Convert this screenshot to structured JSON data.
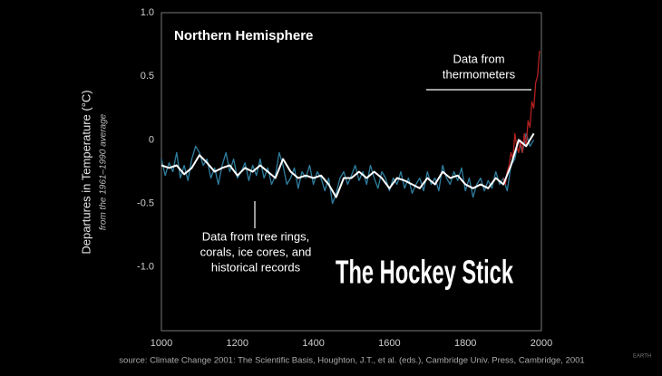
{
  "chart_data": {
    "type": "line",
    "title": "Northern Hemisphere",
    "y_label": "Departures in Temperature (°C)",
    "y_sublabel": "from the 1961–1990 average",
    "headline": "The Hockey Stick",
    "source": "source: Climate Change 2001: The Scientific Basis, Houghton, J.T., et al. (eds.), Cambridge Univ. Press, Cambridge, 2001",
    "logo": "EARTH",
    "annotations": [
      {
        "lines": [
          "Data from",
          "thermometers"
        ]
      },
      {
        "lines": [
          "Data from tree rings,",
          "corals, ice cores, and",
          "historical records"
        ]
      }
    ],
    "xlim": [
      1000,
      2000
    ],
    "xticks": [
      1000,
      1200,
      1400,
      1600,
      1800,
      2000
    ],
    "ylim": [
      -1.5,
      1.0
    ],
    "yticks": [
      {
        "value": 1,
        "label": "1.0"
      },
      0.5,
      0,
      -0.5,
      {
        "value": -1,
        "label": "-1.0"
      }
    ],
    "series": [
      {
        "color": "#2f7fa0",
        "x": [
          1000,
          1010,
          1020,
          1030,
          1040,
          1050,
          1060,
          1070,
          1080,
          1090,
          1100,
          1110,
          1120,
          1130,
          1140,
          1150,
          1160,
          1170,
          1180,
          1190,
          1200,
          1210,
          1220,
          1230,
          1240,
          1250,
          1260,
          1270,
          1280,
          1290,
          1300,
          1310,
          1320,
          1330,
          1340,
          1350,
          1360,
          1370,
          1380,
          1390,
          1400,
          1410,
          1420,
          1430,
          1440,
          1450,
          1460,
          1470,
          1480,
          1490,
          1500,
          1510,
          1520,
          1530,
          1540,
          1550,
          1560,
          1570,
          1580,
          1590,
          1600,
          1610,
          1620,
          1630,
          1640,
          1650,
          1660,
          1670,
          1680,
          1690,
          1700,
          1710,
          1720,
          1730,
          1740,
          1750,
          1760,
          1770,
          1780,
          1790,
          1800,
          1810,
          1820,
          1830,
          1840,
          1850,
          1860,
          1870,
          1880,
          1890,
          1900,
          1910,
          1920,
          1930,
          1940,
          1950,
          1960,
          1970,
          1980
        ],
        "values": [
          -0.15,
          -0.28,
          -0.18,
          -0.25,
          -0.1,
          -0.3,
          -0.2,
          -0.32,
          -0.15,
          -0.05,
          -0.1,
          -0.2,
          -0.15,
          -0.3,
          -0.22,
          -0.35,
          -0.2,
          -0.1,
          -0.25,
          -0.15,
          -0.3,
          -0.25,
          -0.18,
          -0.32,
          -0.2,
          -0.28,
          -0.15,
          -0.3,
          -0.22,
          -0.35,
          -0.28,
          -0.1,
          -0.2,
          -0.35,
          -0.3,
          -0.22,
          -0.38,
          -0.25,
          -0.3,
          -0.2,
          -0.35,
          -0.25,
          -0.3,
          -0.4,
          -0.3,
          -0.5,
          -0.42,
          -0.3,
          -0.25,
          -0.35,
          -0.28,
          -0.2,
          -0.32,
          -0.25,
          -0.35,
          -0.2,
          -0.3,
          -0.38,
          -0.25,
          -0.3,
          -0.4,
          -0.3,
          -0.35,
          -0.25,
          -0.38,
          -0.3,
          -0.42,
          -0.35,
          -0.3,
          -0.4,
          -0.25,
          -0.35,
          -0.3,
          -0.4,
          -0.2,
          -0.3,
          -0.35,
          -0.25,
          -0.32,
          -0.22,
          -0.4,
          -0.3,
          -0.45,
          -0.35,
          -0.3,
          -0.4,
          -0.32,
          -0.38,
          -0.25,
          -0.35,
          -0.3,
          -0.4,
          -0.2,
          -0.15,
          0.0,
          -0.1,
          0.05,
          -0.05,
          0.0
        ]
      },
      {
        "color": "#b52020",
        "x": [
          1900,
          1905,
          1910,
          1915,
          1920,
          1925,
          1930,
          1935,
          1940,
          1945,
          1950,
          1955,
          1960,
          1965,
          1970,
          1975,
          1980,
          1985,
          1990,
          1995
        ],
        "values": [
          -0.3,
          -0.35,
          -0.25,
          -0.2,
          -0.1,
          -0.15,
          0.05,
          -0.05,
          -0.1,
          0.0,
          -0.1,
          0.05,
          -0.05,
          0.15,
          0.1,
          0.3,
          0.25,
          0.45,
          0.5,
          0.7
        ]
      },
      {
        "color": "#ffffff",
        "x": [
          1000,
          1020,
          1040,
          1060,
          1080,
          1100,
          1120,
          1140,
          1160,
          1180,
          1200,
          1220,
          1240,
          1260,
          1280,
          1300,
          1320,
          1340,
          1360,
          1380,
          1400,
          1420,
          1440,
          1460,
          1480,
          1500,
          1520,
          1540,
          1560,
          1580,
          1600,
          1620,
          1640,
          1660,
          1680,
          1700,
          1720,
          1740,
          1760,
          1780,
          1800,
          1820,
          1840,
          1860,
          1880,
          1900,
          1920,
          1940,
          1960,
          1980
        ],
        "values": [
          -0.2,
          -0.22,
          -0.2,
          -0.27,
          -0.22,
          -0.12,
          -0.18,
          -0.25,
          -0.22,
          -0.2,
          -0.28,
          -0.22,
          -0.25,
          -0.2,
          -0.25,
          -0.3,
          -0.15,
          -0.25,
          -0.3,
          -0.28,
          -0.3,
          -0.28,
          -0.35,
          -0.45,
          -0.3,
          -0.3,
          -0.25,
          -0.3,
          -0.25,
          -0.3,
          -0.38,
          -0.3,
          -0.32,
          -0.35,
          -0.38,
          -0.3,
          -0.35,
          -0.25,
          -0.3,
          -0.28,
          -0.35,
          -0.38,
          -0.35,
          -0.38,
          -0.3,
          -0.35,
          -0.2,
          0.0,
          -0.05,
          0.05
        ]
      }
    ]
  }
}
